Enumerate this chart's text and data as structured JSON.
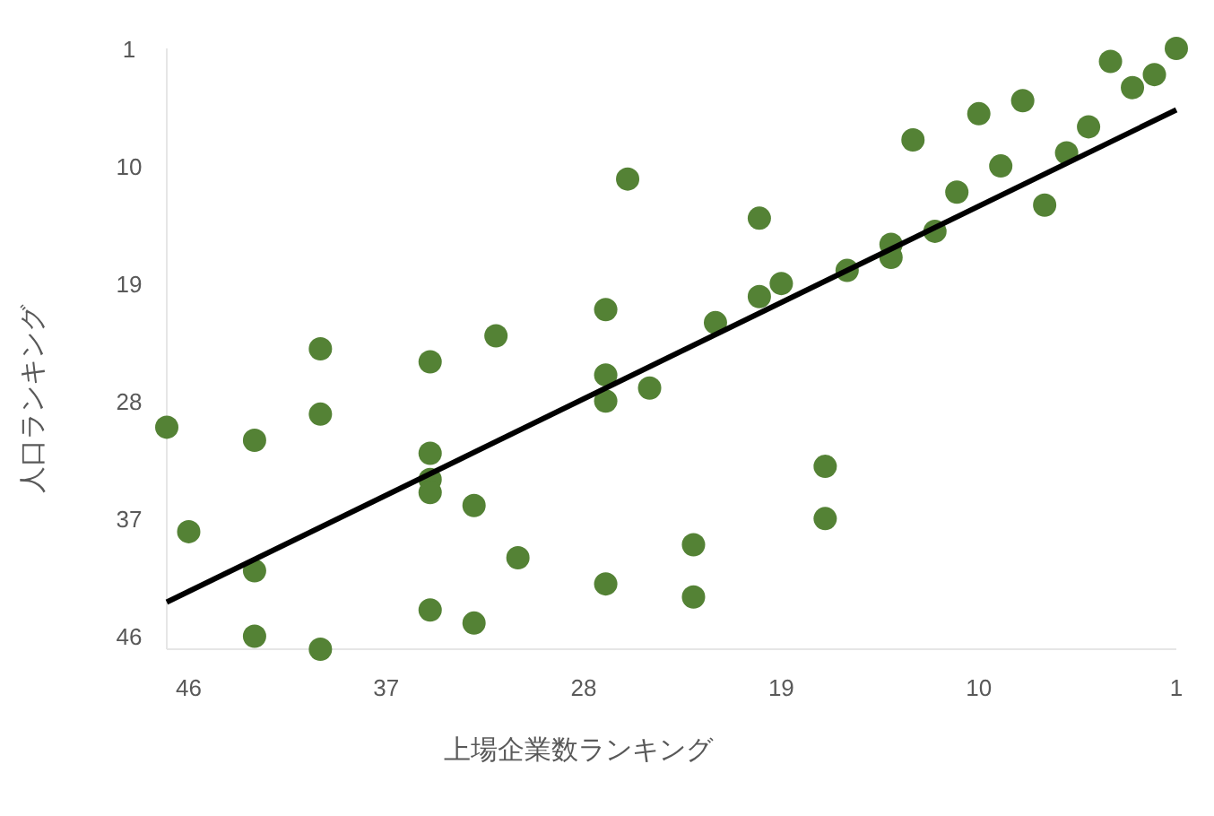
{
  "chart_data": {
    "type": "scatter",
    "xlabel": "上場企業数ランキング",
    "ylabel": "人口ランキング",
    "xlim": [
      47,
      1
    ],
    "ylim": [
      47,
      1
    ],
    "xticks": [
      46,
      37,
      28,
      19,
      10,
      1
    ],
    "yticks": [
      1,
      10,
      19,
      28,
      37,
      46
    ],
    "grid": false,
    "series": [
      {
        "marker": "circle",
        "color": "#548235",
        "x": [
          47,
          46,
          43,
          43,
          43,
          40,
          40,
          40,
          35,
          35,
          35,
          35,
          35,
          33,
          33,
          32,
          31,
          27,
          27,
          27,
          27,
          26,
          25,
          23,
          23,
          22,
          20,
          20,
          19,
          17,
          17,
          16,
          14,
          14,
          13,
          12,
          11,
          10,
          9,
          8,
          7,
          6,
          5,
          4,
          3,
          2,
          1
        ],
        "values": [
          30,
          38,
          31,
          41,
          46,
          24,
          29,
          47,
          25,
          32,
          34,
          35,
          44,
          36,
          45,
          23,
          40,
          21,
          26,
          28,
          42,
          11,
          27,
          39,
          43,
          22,
          14,
          20,
          19,
          33,
          37,
          18,
          16,
          17,
          8,
          15,
          12,
          6,
          10,
          5,
          13,
          9,
          7,
          2,
          4,
          3,
          1
        ]
      },
      {
        "type": "line",
        "color": "#000000",
        "x": [
          47,
          1
        ],
        "values": [
          43.4,
          5.7
        ]
      }
    ]
  }
}
